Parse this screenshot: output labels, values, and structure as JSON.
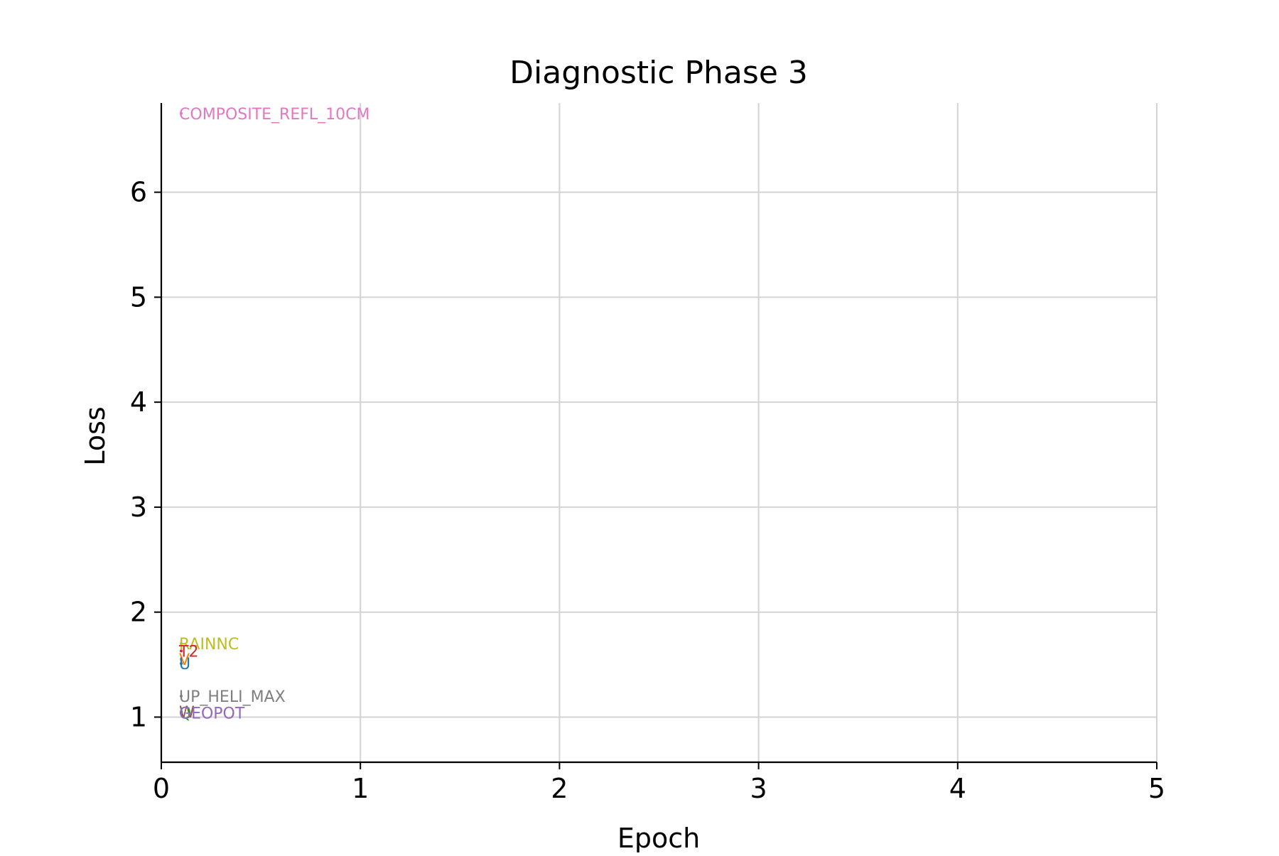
{
  "chart_data": {
    "type": "line",
    "title": "Diagnostic Phase 3",
    "xlabel": "Epoch",
    "ylabel": "Loss",
    "xlim": [
      0,
      5
    ],
    "ylim": [
      0.57,
      6.85
    ],
    "x_ticks": [
      0,
      1,
      2,
      3,
      4,
      5
    ],
    "y_ticks": [
      1,
      2,
      3,
      4,
      5,
      6
    ],
    "grid": true,
    "legend": "none (series labeled inline at x = 0.1)",
    "series": [
      {
        "name": "COMPOSITE_REFL_10CM",
        "color": "#e377c2",
        "points": [
          {
            "x": 0.1,
            "y": 6.75
          }
        ]
      },
      {
        "name": "RAINNC",
        "color": "#bcbd22",
        "points": [
          {
            "x": 0.1,
            "y": 1.7
          }
        ]
      },
      {
        "name": "T2",
        "color": "#d62728",
        "points": [
          {
            "x": 0.1,
            "y": 1.63
          }
        ]
      },
      {
        "name": "V",
        "color": "#ff7f0e",
        "points": [
          {
            "x": 0.1,
            "y": 1.55
          }
        ]
      },
      {
        "name": "U",
        "color": "#1f77b4",
        "points": [
          {
            "x": 0.1,
            "y": 1.51
          }
        ]
      },
      {
        "name": "UP_HELI_MAX",
        "color": "#7f7f7f",
        "points": [
          {
            "x": 0.1,
            "y": 1.2
          }
        ]
      },
      {
        "name": "W",
        "color": "#8c564b",
        "points": [
          {
            "x": 0.1,
            "y": 1.05
          }
        ]
      },
      {
        "name": "Q",
        "color": "#2ca02c",
        "points": [
          {
            "x": 0.1,
            "y": 1.04
          }
        ]
      },
      {
        "name": "GEOPOT",
        "color": "#9467bd",
        "points": [
          {
            "x": 0.1,
            "y": 1.04
          }
        ]
      }
    ]
  }
}
